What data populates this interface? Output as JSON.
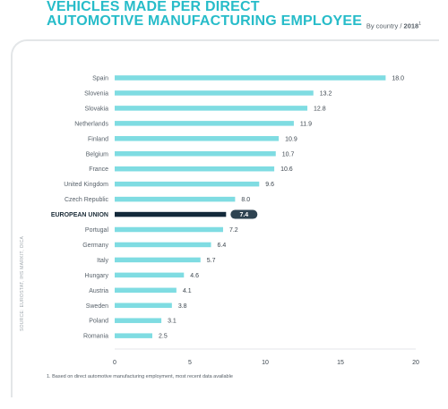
{
  "header": {
    "title_line1": "VEHICLES MADE PER DIRECT",
    "title_line2": "AUTOMOTIVE MANUFACTURING EMPLOYEE",
    "subtitle_prefix": "By country / ",
    "subtitle_year": "2018",
    "subtitle_note": "1"
  },
  "source_text": "SOURCE: EUROSTAT, IHS MARKIT, OICA",
  "footnote": "1. Based on direct automotive manufacturing employment, most recent data available",
  "colors": {
    "bar": "#7fdce2",
    "highlight_bar": "#13293a",
    "highlight_label_bg": "#2e4351",
    "title": "#27bcc9"
  },
  "chart_data": {
    "type": "bar",
    "orientation": "horizontal",
    "categories": [
      "Spain",
      "Slovenia",
      "Slovakia",
      "Netherlands",
      "Finland",
      "Belgium",
      "France",
      "United Kingdom",
      "Czech Republic",
      "EUROPEAN UNION",
      "Portugal",
      "Germany",
      "Italy",
      "Hungary",
      "Austria",
      "Sweden",
      "Poland",
      "Romania"
    ],
    "values": [
      18.0,
      13.2,
      12.8,
      11.9,
      10.9,
      10.7,
      10.6,
      9.6,
      8.0,
      7.4,
      7.2,
      6.4,
      5.7,
      4.6,
      4.1,
      3.8,
      3.1,
      2.5
    ],
    "value_labels": [
      "18.0",
      "13.2",
      "12.8",
      "11.9",
      "10.9",
      "10.7",
      "10.6",
      "9.6",
      "8.0",
      "7.4",
      "7.2",
      "6.4",
      "5.7",
      "4.6",
      "4.1",
      "3.8",
      "3.1",
      "2.5"
    ],
    "highlight": "EUROPEAN UNION",
    "xlim": [
      0,
      20
    ],
    "xticks": [
      0,
      5,
      10,
      15,
      20
    ],
    "title": "VEHICLES MADE PER DIRECT AUTOMOTIVE MANUFACTURING EMPLOYEE",
    "xlabel": "",
    "ylabel": "",
    "grid": false
  }
}
